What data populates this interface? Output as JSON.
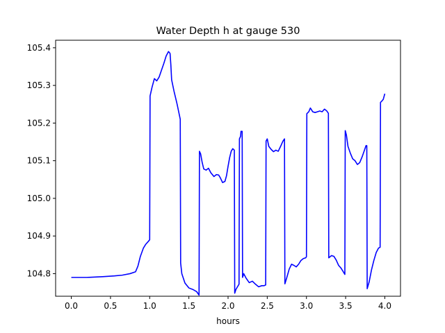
{
  "chart_data": {
    "type": "line",
    "title": "Water Depth h at gauge 530",
    "xlabel": "hours",
    "ylabel": "",
    "xlim": [
      -0.2,
      4.2
    ],
    "ylim": [
      104.74,
      105.42
    ],
    "xticks": [
      0.0,
      0.5,
      1.0,
      1.5,
      2.0,
      2.5,
      3.0,
      3.5,
      4.0
    ],
    "xtick_labels": [
      "0.0",
      "0.5",
      "1.0",
      "1.5",
      "2.0",
      "2.5",
      "3.0",
      "3.5",
      "4.0"
    ],
    "yticks": [
      104.8,
      104.9,
      105.0,
      105.1,
      105.2,
      105.3,
      105.4
    ],
    "ytick_labels": [
      "104.8",
      "104.9",
      "105.0",
      "105.1",
      "105.2",
      "105.3",
      "105.4"
    ],
    "grid": false,
    "series": [
      {
        "color": "#0000ff",
        "x": [
          0.0,
          0.2,
          0.4,
          0.55,
          0.65,
          0.75,
          0.82,
          0.85,
          0.88,
          0.92,
          0.95,
          0.98,
          1.0,
          1.005,
          1.03,
          1.06,
          1.09,
          1.12,
          1.15,
          1.18,
          1.21,
          1.24,
          1.26,
          1.27,
          1.28,
          1.31,
          1.35,
          1.39,
          1.395,
          1.41,
          1.45,
          1.5,
          1.55,
          1.6,
          1.63,
          1.635,
          1.65,
          1.67,
          1.69,
          1.72,
          1.75,
          1.78,
          1.82,
          1.85,
          1.88,
          1.9,
          1.93,
          1.96,
          1.98,
          2.0,
          2.02,
          2.04,
          2.06,
          2.08,
          2.085,
          2.1,
          2.14,
          2.145,
          2.16,
          2.165,
          2.18,
          2.185,
          2.2,
          2.23,
          2.27,
          2.31,
          2.35,
          2.39,
          2.43,
          2.46,
          2.48,
          2.485,
          2.5,
          2.52,
          2.55,
          2.58,
          2.61,
          2.64,
          2.67,
          2.7,
          2.72,
          2.725,
          2.75,
          2.78,
          2.81,
          2.84,
          2.87,
          2.9,
          2.93,
          2.96,
          2.99,
          3.0,
          3.005,
          3.03,
          3.05,
          3.08,
          3.11,
          3.14,
          3.17,
          3.2,
          3.23,
          3.26,
          3.28,
          3.285,
          3.32,
          3.35,
          3.38,
          3.41,
          3.44,
          3.47,
          3.49,
          3.495,
          3.51,
          3.53,
          3.56,
          3.59,
          3.62,
          3.65,
          3.68,
          3.71,
          3.74,
          3.76,
          3.77,
          3.775,
          3.8,
          3.83,
          3.86,
          3.89,
          3.92,
          3.94,
          3.945,
          3.96,
          3.98,
          4.0
        ],
        "y": [
          104.79,
          104.79,
          104.792,
          104.794,
          104.796,
          104.8,
          104.805,
          104.82,
          104.845,
          104.868,
          104.878,
          104.885,
          104.89,
          105.272,
          105.295,
          105.318,
          105.312,
          105.322,
          105.34,
          105.358,
          105.378,
          105.39,
          105.385,
          105.355,
          105.315,
          105.285,
          105.25,
          105.21,
          104.828,
          104.8,
          104.775,
          104.762,
          104.758,
          104.752,
          104.743,
          105.125,
          105.118,
          105.095,
          105.078,
          105.075,
          105.08,
          105.068,
          105.058,
          105.063,
          105.062,
          105.055,
          105.042,
          105.045,
          105.06,
          105.085,
          105.108,
          105.125,
          105.132,
          105.128,
          104.748,
          104.758,
          104.772,
          105.158,
          105.165,
          105.178,
          105.178,
          104.79,
          104.8,
          104.788,
          104.776,
          104.78,
          104.772,
          104.765,
          104.768,
          104.768,
          104.77,
          105.152,
          105.158,
          105.138,
          105.13,
          105.124,
          105.128,
          105.125,
          105.138,
          105.152,
          105.158,
          104.773,
          104.79,
          104.812,
          104.825,
          104.822,
          104.818,
          104.825,
          104.835,
          104.84,
          104.842,
          104.845,
          105.225,
          105.23,
          105.24,
          105.23,
          105.228,
          105.23,
          105.232,
          105.23,
          105.237,
          105.232,
          105.226,
          104.842,
          104.848,
          104.846,
          104.836,
          104.822,
          104.815,
          104.805,
          104.798,
          105.18,
          105.168,
          105.138,
          105.12,
          105.105,
          105.1,
          105.09,
          105.095,
          105.11,
          105.128,
          105.14,
          105.14,
          104.76,
          104.778,
          104.81,
          104.835,
          104.856,
          104.868,
          104.87,
          105.255,
          105.258,
          105.263,
          105.278
        ]
      }
    ]
  }
}
